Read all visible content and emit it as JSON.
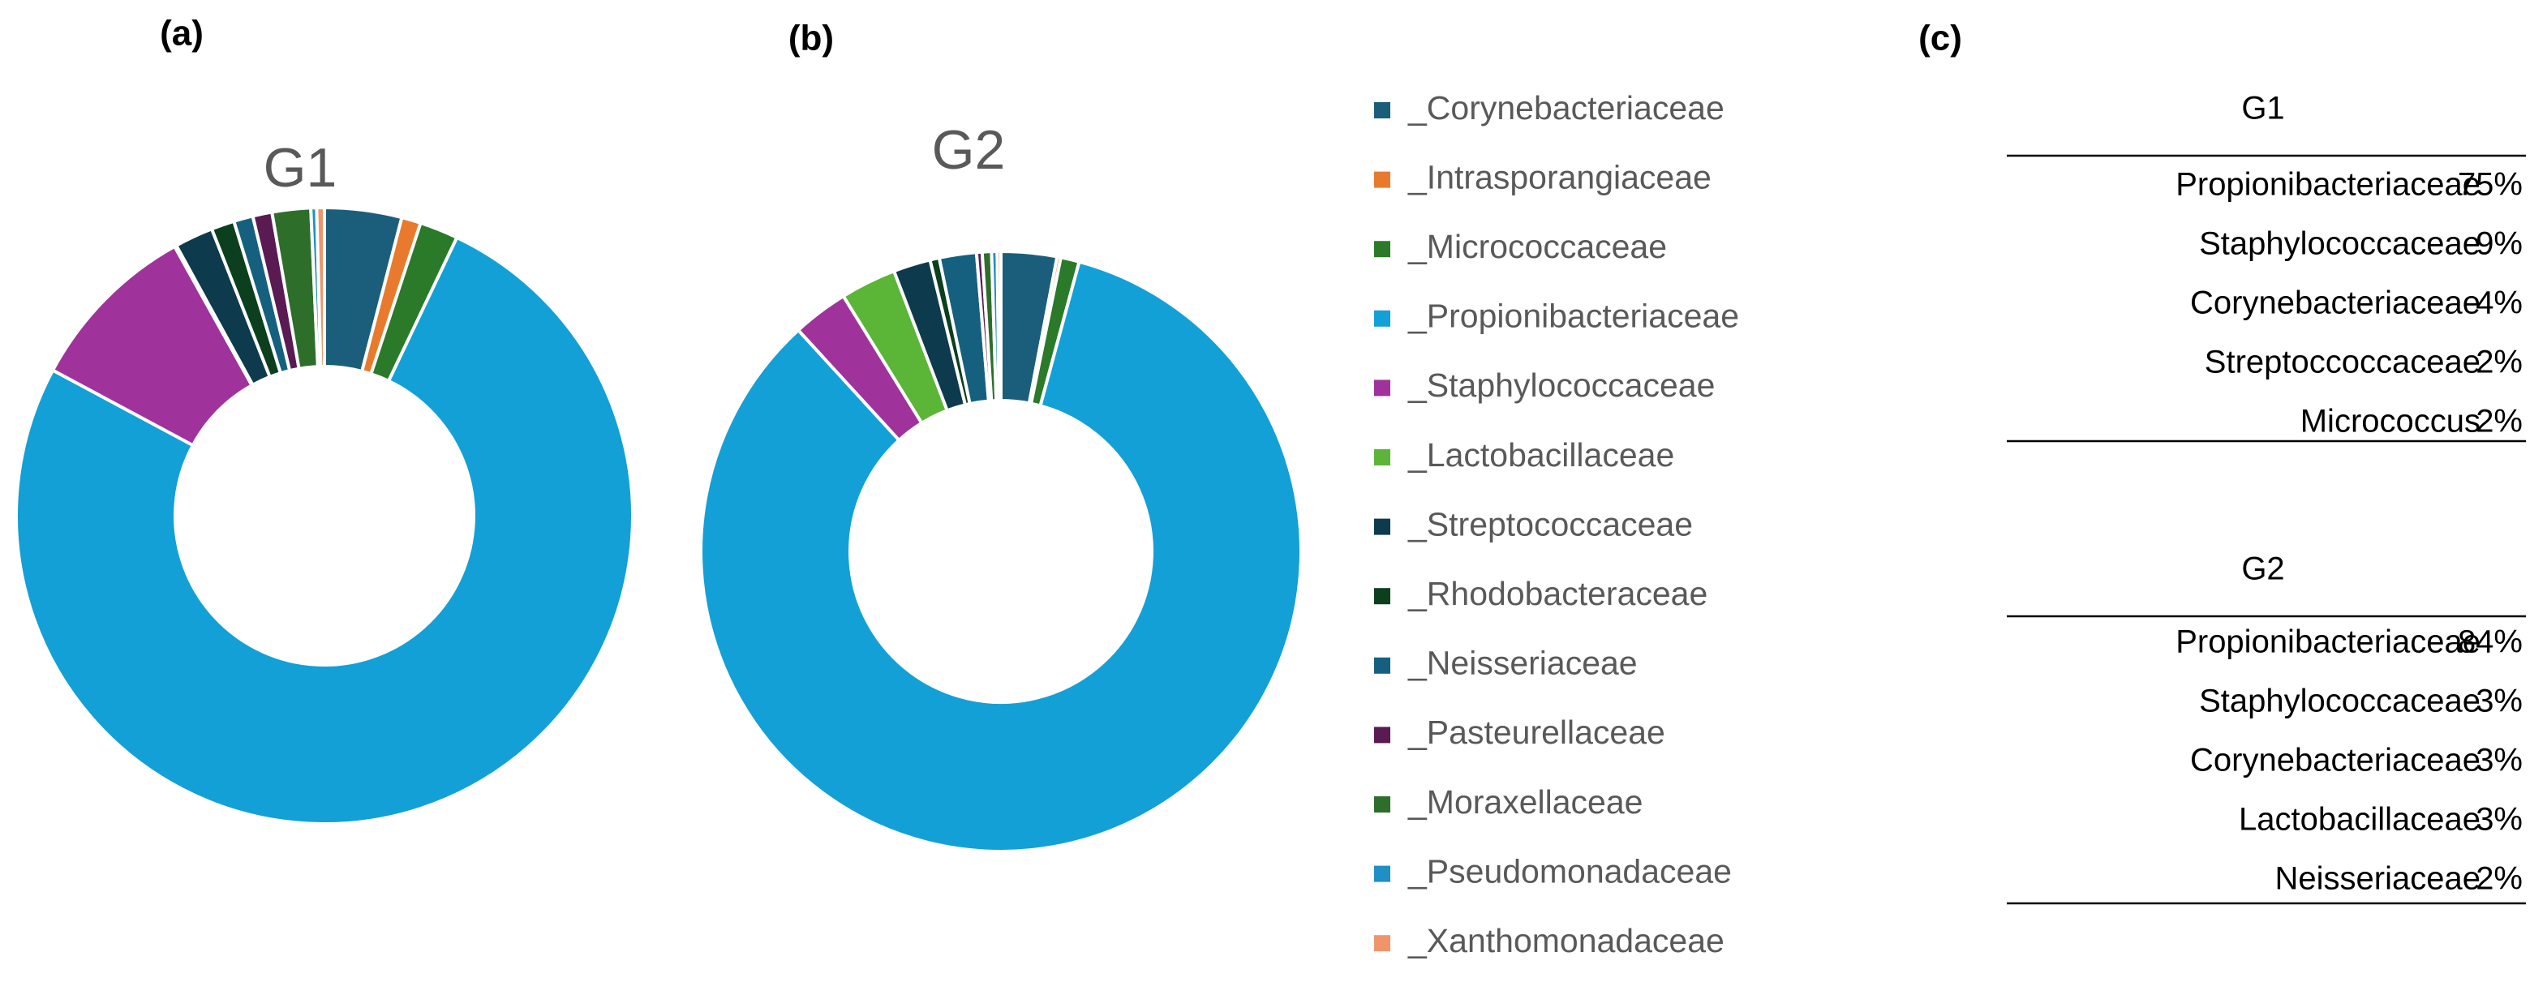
{
  "chart_data": [
    {
      "type": "pie",
      "panel": "(a)",
      "title": "G1",
      "values": [
        4,
        1,
        2,
        75,
        9,
        0.1,
        2,
        1.2,
        1,
        1,
        2,
        0.3,
        0.4
      ]
    },
    {
      "type": "pie",
      "panel": "(b)",
      "title": "G2",
      "values": [
        3,
        0.2,
        1,
        84,
        3,
        3,
        2,
        0.5,
        2,
        0.3,
        0.5,
        0.3,
        0.2
      ]
    }
  ],
  "legend": {
    "categories": [
      "_Corynebacteriaceae",
      "_Intrasporangiaceae",
      "_Micrococcaceae",
      "_Propionibacteriaceae",
      "_Staphylococcaceae",
      "_Lactobacillaceae",
      "_Streptococcaceae",
      "_Rhodobacteraceae",
      "_Neisseriaceae",
      "_Pasteurellaceae",
      "_Moraxellaceae",
      "_Pseudomonadaceae",
      "_Xanthomonadaceae"
    ],
    "colors": [
      "#1b5e7b",
      "#e87a2e",
      "#2a7a2a",
      "#12a0d7",
      "#a0329b",
      "#5bb536",
      "#0e3a4d",
      "#0b3f1e",
      "#16607f",
      "#5a1a52",
      "#2d6e2a",
      "#1f8fc4",
      "#f0956a"
    ]
  },
  "tables": {
    "panel": "(c)",
    "groups": [
      {
        "title": "G1",
        "rows": [
          [
            "Propionibacteriaceae",
            "75%"
          ],
          [
            "Staphylococcaceae",
            "9%"
          ],
          [
            "Corynebacteriaceae",
            "4%"
          ],
          [
            "Streptoccoccaceae",
            "2%"
          ],
          [
            "Micrococcus",
            "2%"
          ]
        ]
      },
      {
        "title": "G2",
        "rows": [
          [
            "Propionibacteriaceae",
            "84%"
          ],
          [
            "Staphylococcaceae",
            "3%"
          ],
          [
            "Corynebacteriaceae",
            "3%"
          ],
          [
            "Lactobacillaceae",
            "3%"
          ],
          [
            "Neisseriaceae",
            "2%"
          ]
        ]
      }
    ]
  }
}
